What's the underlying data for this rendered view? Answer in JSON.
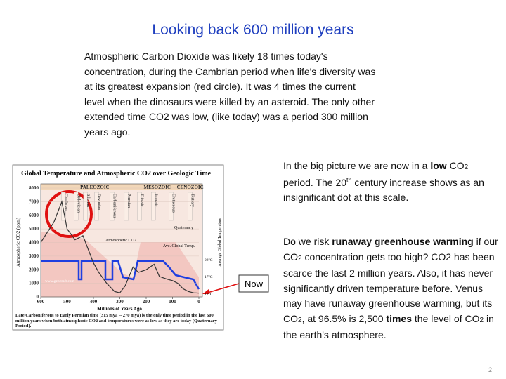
{
  "slide": {
    "title": "Looking back 600 million years",
    "intro": [
      "Atmospheric Carbon Dioxide was likely 18 times today's",
      "concentration, during the Cambrian period when life's diversity was",
      "at its greatest expansion (red circle).  It was 4 times the current",
      "level when the dinosaurs were killed by an asteroid.  The only other",
      "extended time CO2 was low, (like today) was a period 300 million",
      "years ago."
    ],
    "side_note": [
      "In the big picture we are now in a ",
      "low",
      " CO",
      "2",
      " period.  The 20",
      "th",
      " century increase shows as an insignificant dot at this scale."
    ],
    "question": [
      "Do we risk ",
      "runaway greenhouse warming",
      " if our CO",
      "2",
      " concentration gets too high? CO2 has been scarce the last 2 million years. Also, it has never significantly driven temperature before. Venus may have runaway greenhouse warming, but its CO",
      "2",
      ", at 96.5% is 2,500 ",
      "times",
      " the level of CO",
      "2",
      " in the earth's atmosphere."
    ],
    "now_label": "Now",
    "page_number": "2"
  },
  "figure": {
    "type": "line",
    "title": "Global Temperature and Atmospheric CO2 over Geologic Time",
    "x_label": "Millions of Years Ago",
    "y_label": "Atmospheric CO2 (ppm)",
    "y2_label": "Average Global Temperature",
    "eras": [
      "PALEOZOIC",
      "MESOZOIC",
      "CENOZOIC"
    ],
    "periods": [
      "Cambrian",
      "Ordovician",
      "Silurian",
      "Devonian",
      "Carboniferous",
      "Permian",
      "Triassic",
      "Jurassic",
      "Cretaceous",
      "Tertiary"
    ],
    "legend": [
      "Atmospheric CO2",
      "Ave. Global Temp."
    ],
    "annotation": "Quaternary",
    "temp_labels": [
      "22°C",
      "17°C",
      "12°C"
    ],
    "source": "www.geocraft.com",
    "caption": "Late Carboniferous to Early Permian time (315 mya -- 270 mya) is the only time period in the last 600 million years when both atmospheric CO2 and temperatures were as low as they are today (Quaternary Period).",
    "xlim": [
      600,
      0
    ],
    "xticks": [
      600,
      500,
      400,
      300,
      200,
      100,
      0
    ],
    "ylim": [
      0,
      8000
    ],
    "yticks": [
      0,
      1000,
      2000,
      3000,
      4000,
      5000,
      6000,
      7000,
      8000
    ],
    "series": [
      {
        "name": "Atmospheric CO2",
        "color": "#333333",
        "x": [
          600,
          550,
          520,
          500,
          470,
          440,
          420,
          400,
          380,
          350,
          320,
          300,
          280,
          250,
          230,
          200,
          170,
          150,
          120,
          100,
          80,
          60,
          40,
          20,
          0
        ],
        "values": [
          4000,
          5500,
          7000,
          5000,
          4200,
          4500,
          3500,
          2500,
          1800,
          1000,
          400,
          300,
          800,
          2200,
          1800,
          2000,
          2400,
          1500,
          1300,
          1200,
          1000,
          600,
          400,
          300,
          280
        ]
      }
    ]
  }
}
